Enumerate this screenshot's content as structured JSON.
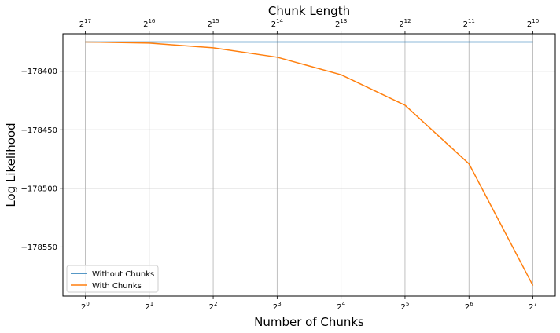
{
  "chart_data": {
    "type": "line",
    "xlabel": "Number of Chunks",
    "ylabel": "Log Likelihood",
    "top_xlabel": "Chunk Length",
    "x_scale": "log2",
    "x": [
      1,
      2,
      4,
      8,
      16,
      32,
      64,
      128
    ],
    "x_tick_labels": [
      {
        "base": "2",
        "exp": "0"
      },
      {
        "base": "2",
        "exp": "1"
      },
      {
        "base": "2",
        "exp": "2"
      },
      {
        "base": "2",
        "exp": "3"
      },
      {
        "base": "2",
        "exp": "4"
      },
      {
        "base": "2",
        "exp": "5"
      },
      {
        "base": "2",
        "exp": "6"
      },
      {
        "base": "2",
        "exp": "7"
      }
    ],
    "top_x_tick_labels": [
      {
        "base": "2",
        "exp": "17"
      },
      {
        "base": "2",
        "exp": "16"
      },
      {
        "base": "2",
        "exp": "15"
      },
      {
        "base": "2",
        "exp": "14"
      },
      {
        "base": "2",
        "exp": "13"
      },
      {
        "base": "2",
        "exp": "12"
      },
      {
        "base": "2",
        "exp": "11"
      },
      {
        "base": "2",
        "exp": "10"
      }
    ],
    "y_ticks": [
      -178400,
      -178450,
      -178500,
      -178550
    ],
    "y_tick_labels": [
      "−178400",
      "−178450",
      "−178500",
      "−178550"
    ],
    "ylim": [
      -178592,
      -178368
    ],
    "grid": true,
    "legend_position": "lower-left",
    "series": [
      {
        "name": "Without Chunks",
        "color": "#1f77b4",
        "values": [
          -178375,
          -178375,
          -178375,
          -178375,
          -178375,
          -178375,
          -178375,
          -178375
        ]
      },
      {
        "name": "With Chunks",
        "color": "#ff7f0e",
        "values": [
          -178375,
          -178376,
          -178380,
          -178388,
          -178403,
          -178429,
          -178479,
          -178583
        ]
      }
    ]
  }
}
